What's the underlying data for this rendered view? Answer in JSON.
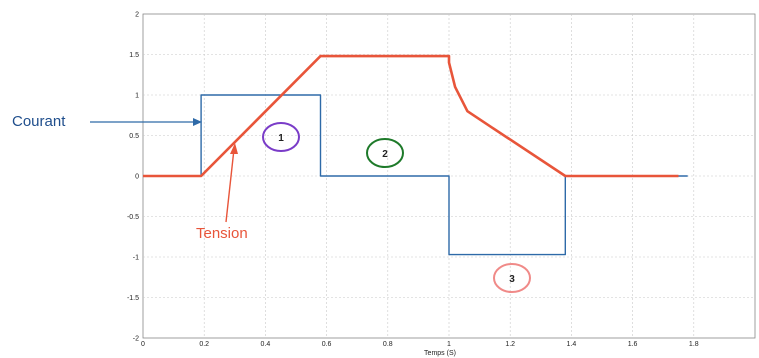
{
  "chart_data": {
    "type": "line",
    "xlabel": "Temps (S)",
    "ylabel": "",
    "xlim": [
      0,
      2
    ],
    "ylim": [
      -2,
      2
    ],
    "x_ticks": [
      "0",
      "0.2",
      "0.4",
      "0.6",
      "0.8",
      "1",
      "1.2",
      "1.4",
      "1.6",
      "1.8"
    ],
    "y_ticks": [
      "2",
      "1.5",
      "1",
      "0.5",
      "0",
      "-0.5",
      "-1",
      "-1.5",
      "-2"
    ],
    "grid": true,
    "series": [
      {
        "name": "Courant",
        "color": "#2e6aa8",
        "points": [
          [
            0,
            0
          ],
          [
            0.19,
            0
          ],
          [
            0.19,
            1
          ],
          [
            0.58,
            1
          ],
          [
            0.58,
            0
          ],
          [
            1.0,
            0
          ],
          [
            1.0,
            -0.97
          ],
          [
            1.38,
            -0.97
          ],
          [
            1.38,
            0
          ],
          [
            1.78,
            0
          ]
        ]
      },
      {
        "name": "Tension",
        "color": "#e8553a",
        "points": [
          [
            0,
            0
          ],
          [
            0.19,
            0
          ],
          [
            0.58,
            1.48
          ],
          [
            1.0,
            1.48
          ],
          [
            1.0,
            1.4
          ],
          [
            1.02,
            1.1
          ],
          [
            1.06,
            0.8
          ],
          [
            1.14,
            0.6
          ],
          [
            1.38,
            0
          ],
          [
            1.75,
            0
          ]
        ]
      }
    ],
    "annotations": [
      {
        "text": "Courant",
        "color": "#1f4e8c"
      },
      {
        "text": "Tension",
        "color": "#e8553a"
      },
      {
        "text": "1",
        "ring_color": "#7a3cc8"
      },
      {
        "text": "2",
        "ring_color": "#1e7a2a"
      },
      {
        "text": "3",
        "ring_color": "#f08a88"
      }
    ]
  }
}
